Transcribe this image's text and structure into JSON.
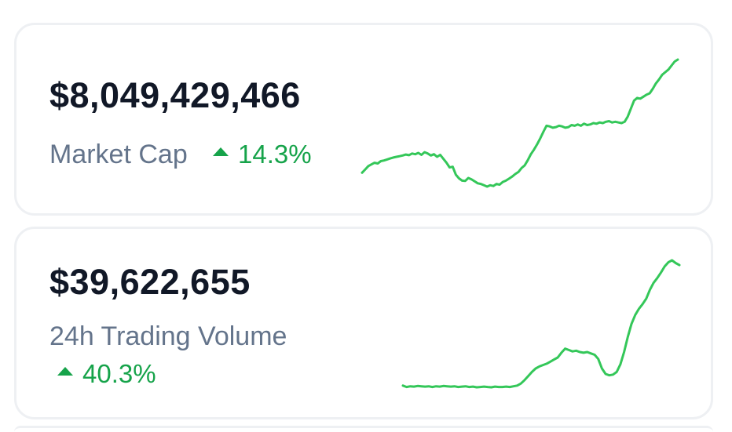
{
  "cards": [
    {
      "value": "$8,049,429,466",
      "label": "Market Cap",
      "change": "14.3%",
      "trend": "up",
      "series": [
        6,
        7,
        8,
        8.5,
        9,
        8.8,
        9.5,
        9.7,
        10,
        10.3,
        10.6,
        10.8,
        11,
        11.2,
        11.5,
        11.3,
        11.8,
        11.6,
        12,
        11.4,
        12.2,
        11.8,
        11.2,
        11.6,
        10.8,
        11.4,
        10.2,
        9,
        7.6,
        7.8,
        5.4,
        4.3,
        3.6,
        3.5,
        4.4,
        4,
        3.4,
        2.8,
        2.6,
        2.2,
        1.8,
        2.2,
        2,
        2.6,
        2.4,
        3.2,
        3.6,
        4.2,
        4.8,
        5.6,
        6.2,
        7.4,
        8.2,
        9.8,
        11.6,
        13,
        14.6,
        16.4,
        18.4,
        20.2,
        20,
        19.6,
        19.8,
        20.2,
        20,
        19.6,
        19.8,
        20.4,
        20.2,
        20.6,
        20.2,
        20.8,
        20.4,
        20.6,
        21,
        20.8,
        21.2,
        21,
        21.4,
        21.6,
        21.2,
        21.4,
        21.2,
        21,
        21.4,
        23,
        25.4,
        27.8,
        28.6,
        28.4,
        29,
        29.6,
        30,
        31.4,
        33,
        34.2,
        35.6,
        36.4,
        37.2,
        38.4,
        39.6,
        40.2
      ]
    },
    {
      "value": "$39,622,655",
      "label": "24h Trading Volume",
      "change": "40.3%",
      "trend": "up",
      "series": [
        5.6,
        5.2,
        5.4,
        5.3,
        5.5,
        5.4,
        5.3,
        5.4,
        5.2,
        5.4,
        5.3,
        5.5,
        5.4,
        5.3,
        5.4,
        5.2,
        5.3,
        5.4,
        5.2,
        5.3,
        5.1,
        5.2,
        5.3,
        5.2,
        5.1,
        5.3,
        5.2,
        5.2,
        5.3,
        5.2,
        5.4,
        5.6,
        6.2,
        7.2,
        8.4,
        9.6,
        10.6,
        11.2,
        11.6,
        12,
        12.6,
        13.2,
        13.8,
        15.2,
        16.4,
        16,
        15.6,
        15.8,
        15.4,
        15.2,
        15.4,
        15,
        14.6,
        13.4,
        10.6,
        9,
        8.6,
        8.8,
        9.6,
        11.8,
        15.4,
        19.8,
        23.6,
        26.2,
        28,
        29.4,
        31,
        33.6,
        35.6,
        37,
        38.6,
        40.4,
        41.6,
        42.2,
        41.4,
        40.8
      ]
    }
  ],
  "colors": {
    "value": "#111827",
    "label": "#64748b",
    "positive": "#16a34a",
    "sparkline": "#34c759",
    "card_border": "#eef0f3"
  },
  "icons": {
    "trend_up": "caret-up-icon"
  }
}
